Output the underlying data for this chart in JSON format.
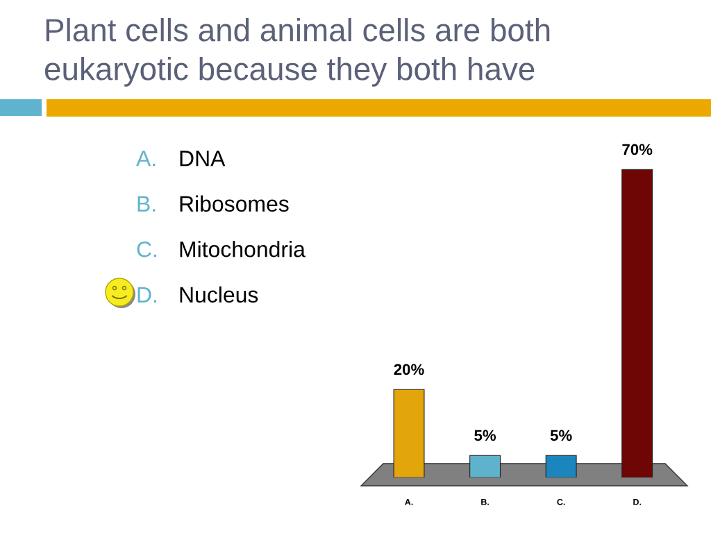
{
  "chart_data": {
    "type": "bar",
    "title": "Plant cells and animal cells are both eukaryotic because they both have",
    "categories": [
      "A.",
      "B.",
      "C.",
      "D."
    ],
    "values": [
      20,
      5,
      5,
      70
    ],
    "colors": [
      "#e2a50c",
      "#5fb2cc",
      "#1b86bd",
      "#6e0606"
    ],
    "value_labels": [
      "20%",
      "5%",
      "5%",
      "70%"
    ],
    "annotations": [
      "A.",
      "DNA",
      "B.",
      "Ribosomes",
      "C.",
      "Mitochondria",
      "D.",
      "Nucleus"
    ]
  }
}
